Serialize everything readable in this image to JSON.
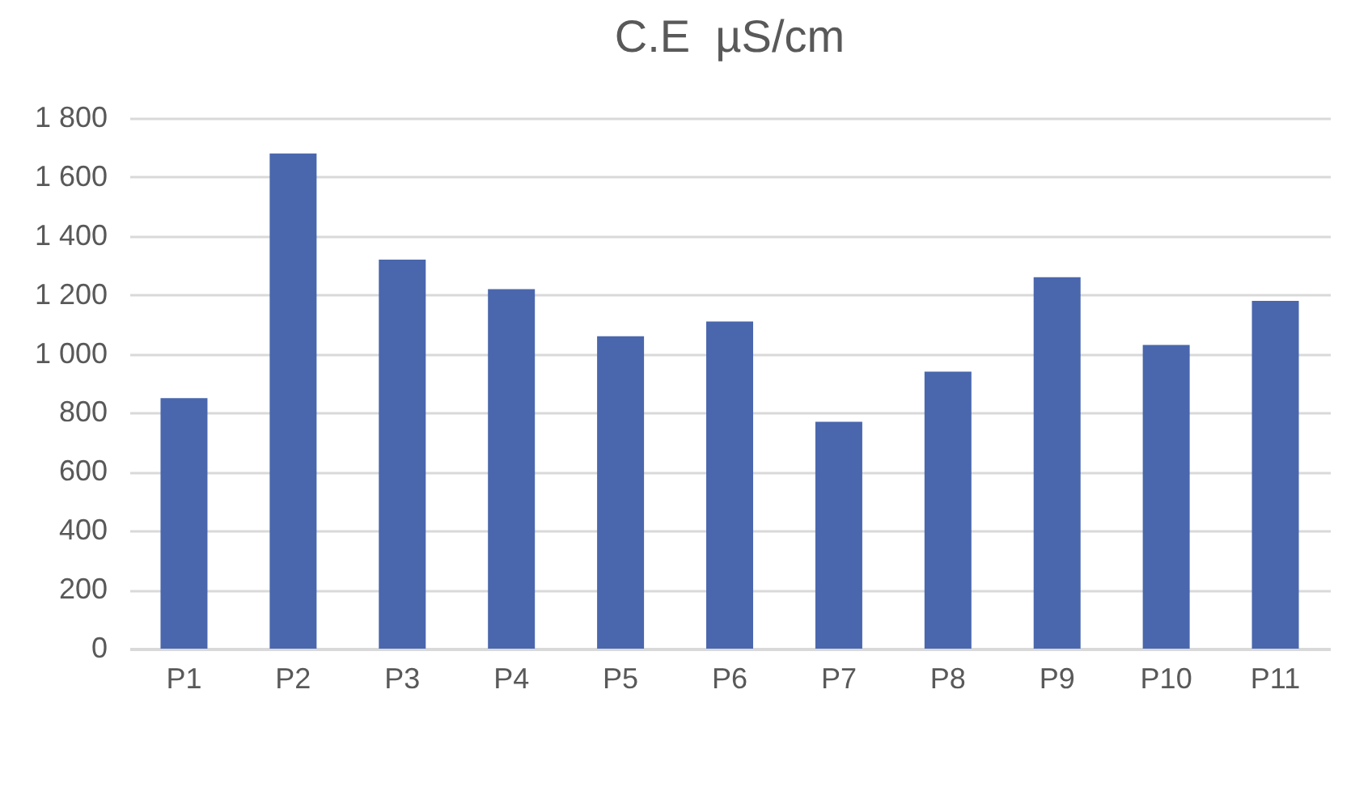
{
  "chart_data": {
    "type": "bar",
    "title": "C.E  µS/cm",
    "categories": [
      "P1",
      "P2",
      "P3",
      "P4",
      "P5",
      "P6",
      "P7",
      "P8",
      "P9",
      "P10",
      "P11"
    ],
    "values": [
      850,
      1680,
      1320,
      1220,
      1060,
      1110,
      770,
      940,
      1260,
      1030,
      1180
    ],
    "color": "#4a67ad",
    "ylim": [
      0,
      1800
    ],
    "yticks": [
      0,
      200,
      400,
      600,
      800,
      {
        "value": 1000,
        "label": "1 000"
      },
      {
        "value": 1200,
        "label": "1 200"
      },
      {
        "value": 1400,
        "label": "1 400"
      },
      {
        "value": 1600,
        "label": "1 600"
      },
      {
        "value": 1800,
        "label": "1 800"
      }
    ],
    "grid": "y"
  }
}
